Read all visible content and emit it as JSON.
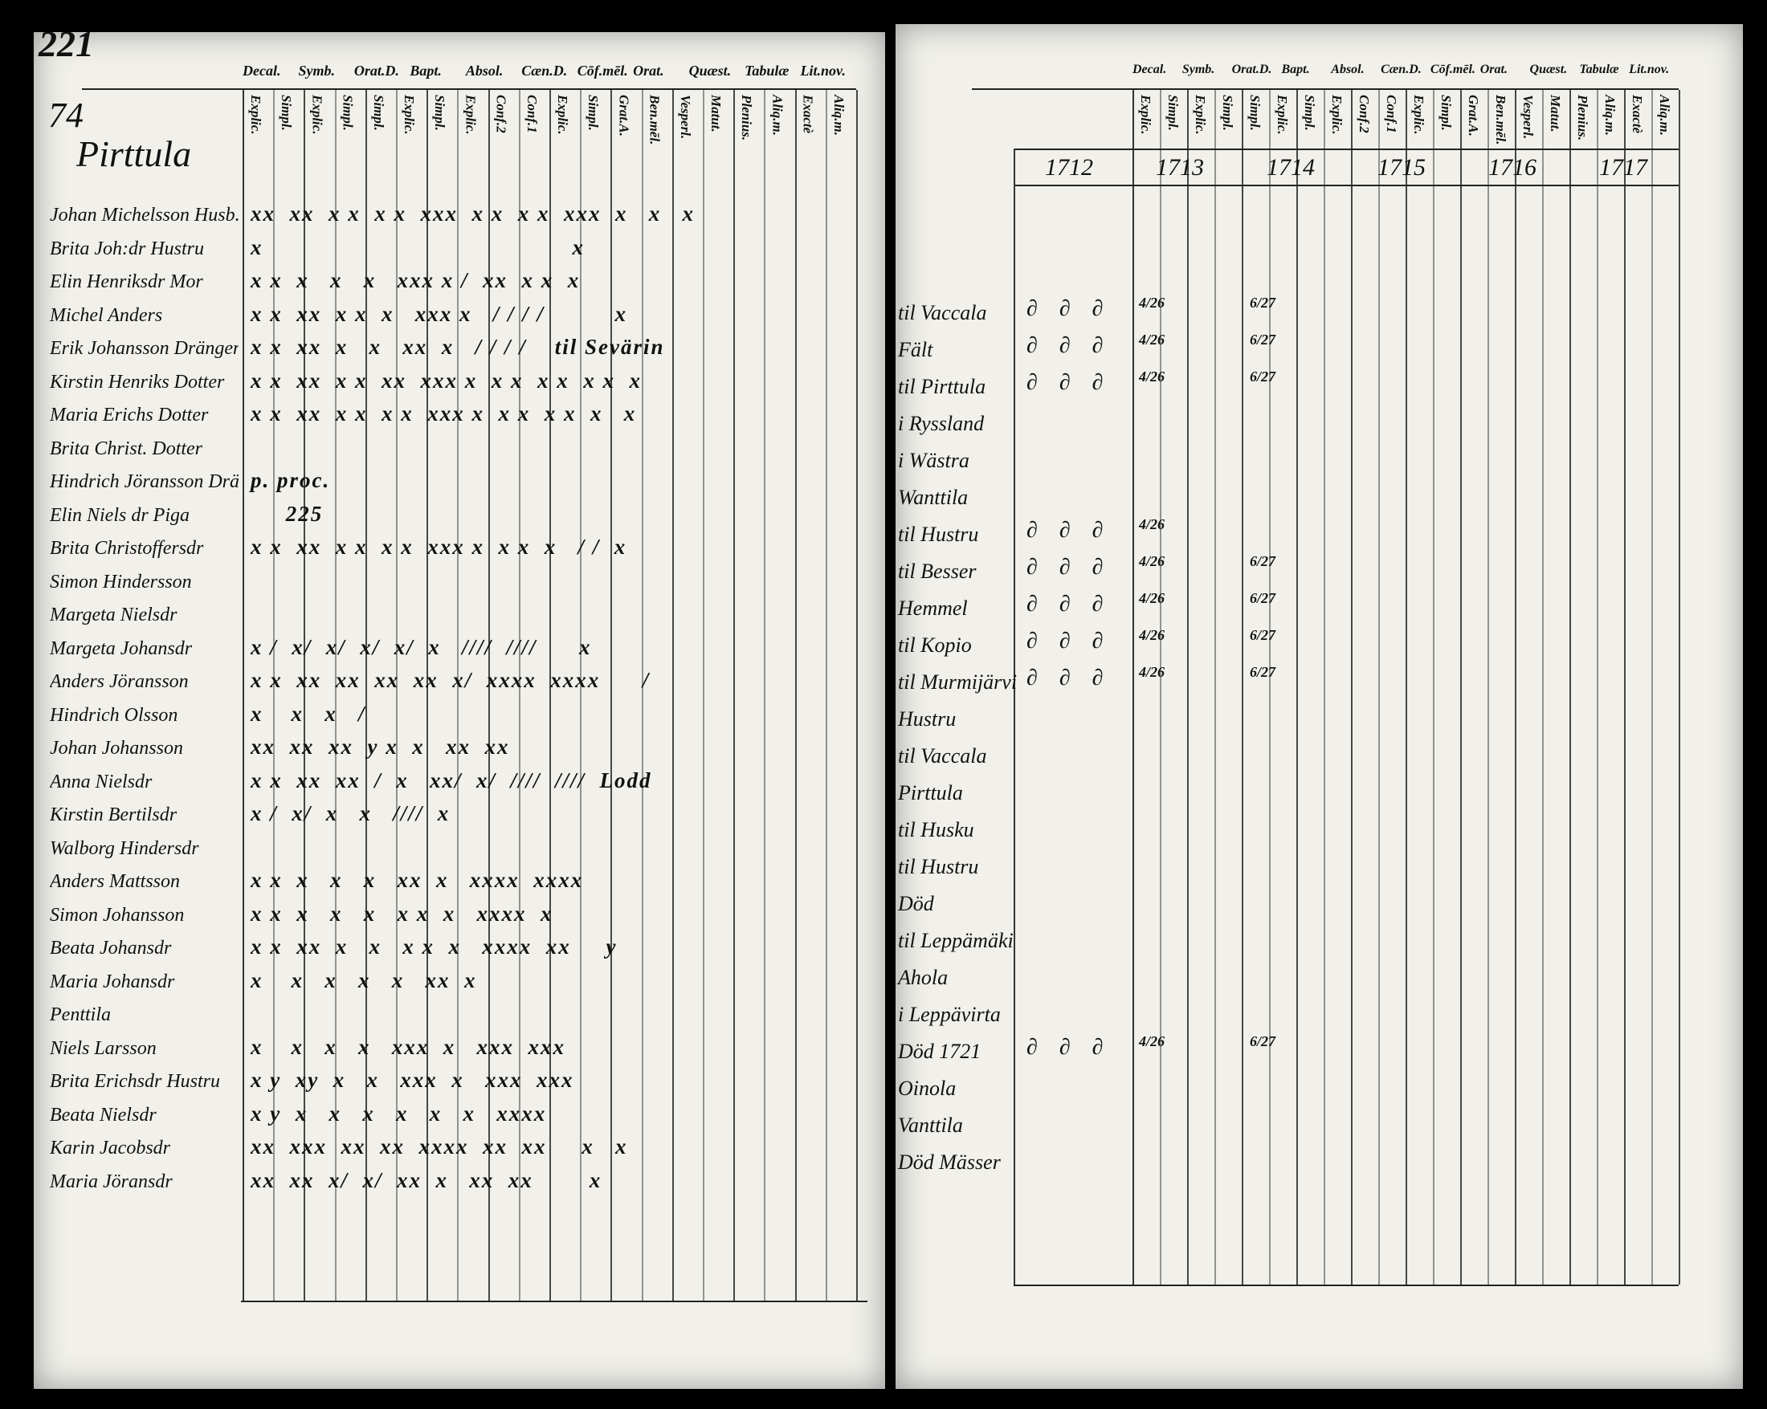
{
  "page_number": "221",
  "list_number": "74",
  "village": "Pirttula",
  "headers": [
    "Decal.",
    "Symb.",
    "Orat.D.",
    "Bapt.",
    "Absol.",
    "Cæn.D.",
    "Cōf.mēl.",
    "Orat.",
    "Quæst.",
    "Tabulæ",
    "Lit.nov."
  ],
  "subheaders": [
    "Explic.",
    "Simpl.",
    "Explic.",
    "Simpl.",
    "Simpl.",
    "Explic.",
    "Simpl.",
    "Explic.",
    "Conf.2",
    "Conf.1",
    "Explic.",
    "Simpl.",
    "Grat.A.",
    "Ben.mēl.",
    "Vesperl.",
    "Matut.",
    "Plenius.",
    "Aliq.m.",
    "Exactè",
    "Aliq.m."
  ],
  "years": [
    "1712",
    "1713",
    "1714",
    "1715",
    "1716",
    "1717"
  ],
  "left_rows": [
    {
      "name": "Johan Michelsson Husb.",
      "marks": "xx  xx  x x  x x  xxx  x x  x x  xxx  x   x   x"
    },
    {
      "name": "Brita Joh:dr Hustru",
      "marks": "x                                            x"
    },
    {
      "name": "Elin Henriksdr Mor",
      "marks": "x x  x   x   x   xxx x /  xx  x x  x"
    },
    {
      "name": "Michel Anders",
      "marks": "x x  xx  x x  x   xxx x   / / / /          x"
    },
    {
      "name": "Erik Johansson Drängen",
      "marks": "x x  xx  x   x   xx  x   / / / /    til Sevärin"
    },
    {
      "name": "Kirstin Henriks Dotter",
      "marks": "x x  xx  x x  xx  xxx x  x x  x x  x x  x"
    },
    {
      "name": "Maria Erichs Dotter",
      "marks": "x x  xx  x x  x x  xxx x  x x  x x  x   x"
    },
    {
      "name": "Brita Christ. Dotter"
    },
    {
      "name": "Hindrich Jöransson Dräng",
      "marks": "p. proc."
    },
    {
      "name": "Elin Niels dr Piga",
      "marks": "     225"
    },
    {
      "name": "Brita Christoffersdr",
      "marks": "x x  xx  x x  x x  xxx x  x x  x   / /  x"
    },
    {
      "name": "Simon Hindersson"
    },
    {
      "name": "Margeta Nielsdr"
    },
    {
      "name": "Margeta Johansdr",
      "marks": "x /  x/  x/  x/  x/  x   ////  ////      x"
    },
    {
      "name": "Anders Jöransson",
      "marks": "x x  xx  xx  xx  xx  x/  xxxx  xxxx      /"
    },
    {
      "name": "Hindrich Olsson",
      "marks": "x    x   x   /"
    },
    {
      "name": "Johan Johansson",
      "marks": "xx  xx  xx  y x  x   xx  xx"
    },
    {
      "name": "Anna Nielsdr",
      "marks": "x x  xx  xx  /  x   xx/  x/  ////  ////  Lodd"
    },
    {
      "name": "Kirstin Bertilsdr",
      "marks": "x /  x/  x   x   ////  x"
    },
    {
      "name": "Walborg Hindersdr"
    },
    {
      "name": "Anders Mattsson",
      "marks": "x x  x   x   x   xx  x   xxxx  xxxx"
    },
    {
      "name": "Simon Johansson",
      "marks": "x x  x   x   x   x x  x   xxxx  x"
    },
    {
      "name": "Beata Johansdr",
      "marks": "x x  xx  x   x   x x  x   xxxx  xx     y"
    },
    {
      "name": "Maria Johansdr",
      "marks": "x    x   x   x   x   xx  x"
    },
    {
      "name": "Penttila"
    },
    {
      "name": "Niels Larsson",
      "marks": "x    x   x   x   xxx  x   xxx  xxx"
    },
    {
      "name": "Brita Erichsdr Hustru",
      "marks": "x y  xy  x   x   xxx  x   xxx  xxx"
    },
    {
      "name": "Beata Nielsdr",
      "marks": "x y  x   x   x   x   x   x   xxxx"
    },
    {
      "name": "Karin Jacobsdr",
      "marks": "xx  xxx  xx  xx  xxxx  xx  xx     x   x"
    },
    {
      "name": "Maria Jöransdr",
      "marks": "xx  xx  x/  x/  xx  x   xx  xx        x"
    }
  ],
  "right_rows": [
    {
      "note": "til Vaccala",
      "ditto": "∂ ∂ ∂",
      "date_1713": "4/26",
      "date_1714": "6/27"
    },
    {
      "note": "Fält",
      "ditto": "∂ ∂ ∂",
      "date_1713": "4/26",
      "date_1714": "6/27"
    },
    {
      "note": "til Pirttula",
      "ditto": "∂ ∂ ∂",
      "date_1713": "4/26",
      "date_1714": "6/27"
    },
    {
      "note": "i Ryssland"
    },
    {
      "note": "i Wästra"
    },
    {
      "note": "Wanttila"
    },
    {
      "note": "til Hustru",
      "ditto": "∂ ∂ ∂",
      "date_1713": "4/26"
    },
    {
      "note": "til Besser",
      "ditto": "∂ ∂ ∂",
      "date_1713": "4/26",
      "date_1714": "6/27"
    },
    {
      "note": "Hemmel",
      "ditto": "∂ ∂ ∂",
      "date_1713": "4/26",
      "date_1714": "6/27"
    },
    {
      "note": "til Kopio",
      "ditto": "∂ ∂ ∂",
      "date_1713": "4/26",
      "date_1714": "6/27"
    },
    {
      "note": "til Murmijärvi",
      "ditto": "∂ ∂ ∂",
      "date_1713": "4/26",
      "date_1714": "6/27"
    },
    {
      "note": "Hustru"
    },
    {
      "note": "til Vaccala"
    },
    {
      "note": "Pirttula"
    },
    {
      "note": "til Husku"
    },
    {
      "note": "til Hustru"
    },
    {
      "note": "Död"
    },
    {
      "note": "til Leppämäki"
    },
    {
      "note": "Ahola"
    },
    {
      "note": "i Leppävirta"
    },
    {
      "note": "Död 1721",
      "ditto": "∂ ∂ ∂",
      "date_1713": "4/26",
      "date_1714": "6/27"
    },
    {
      "note": "Oinola"
    },
    {
      "note": "Vanttila"
    },
    {
      "note": "Död Mässer"
    }
  ]
}
